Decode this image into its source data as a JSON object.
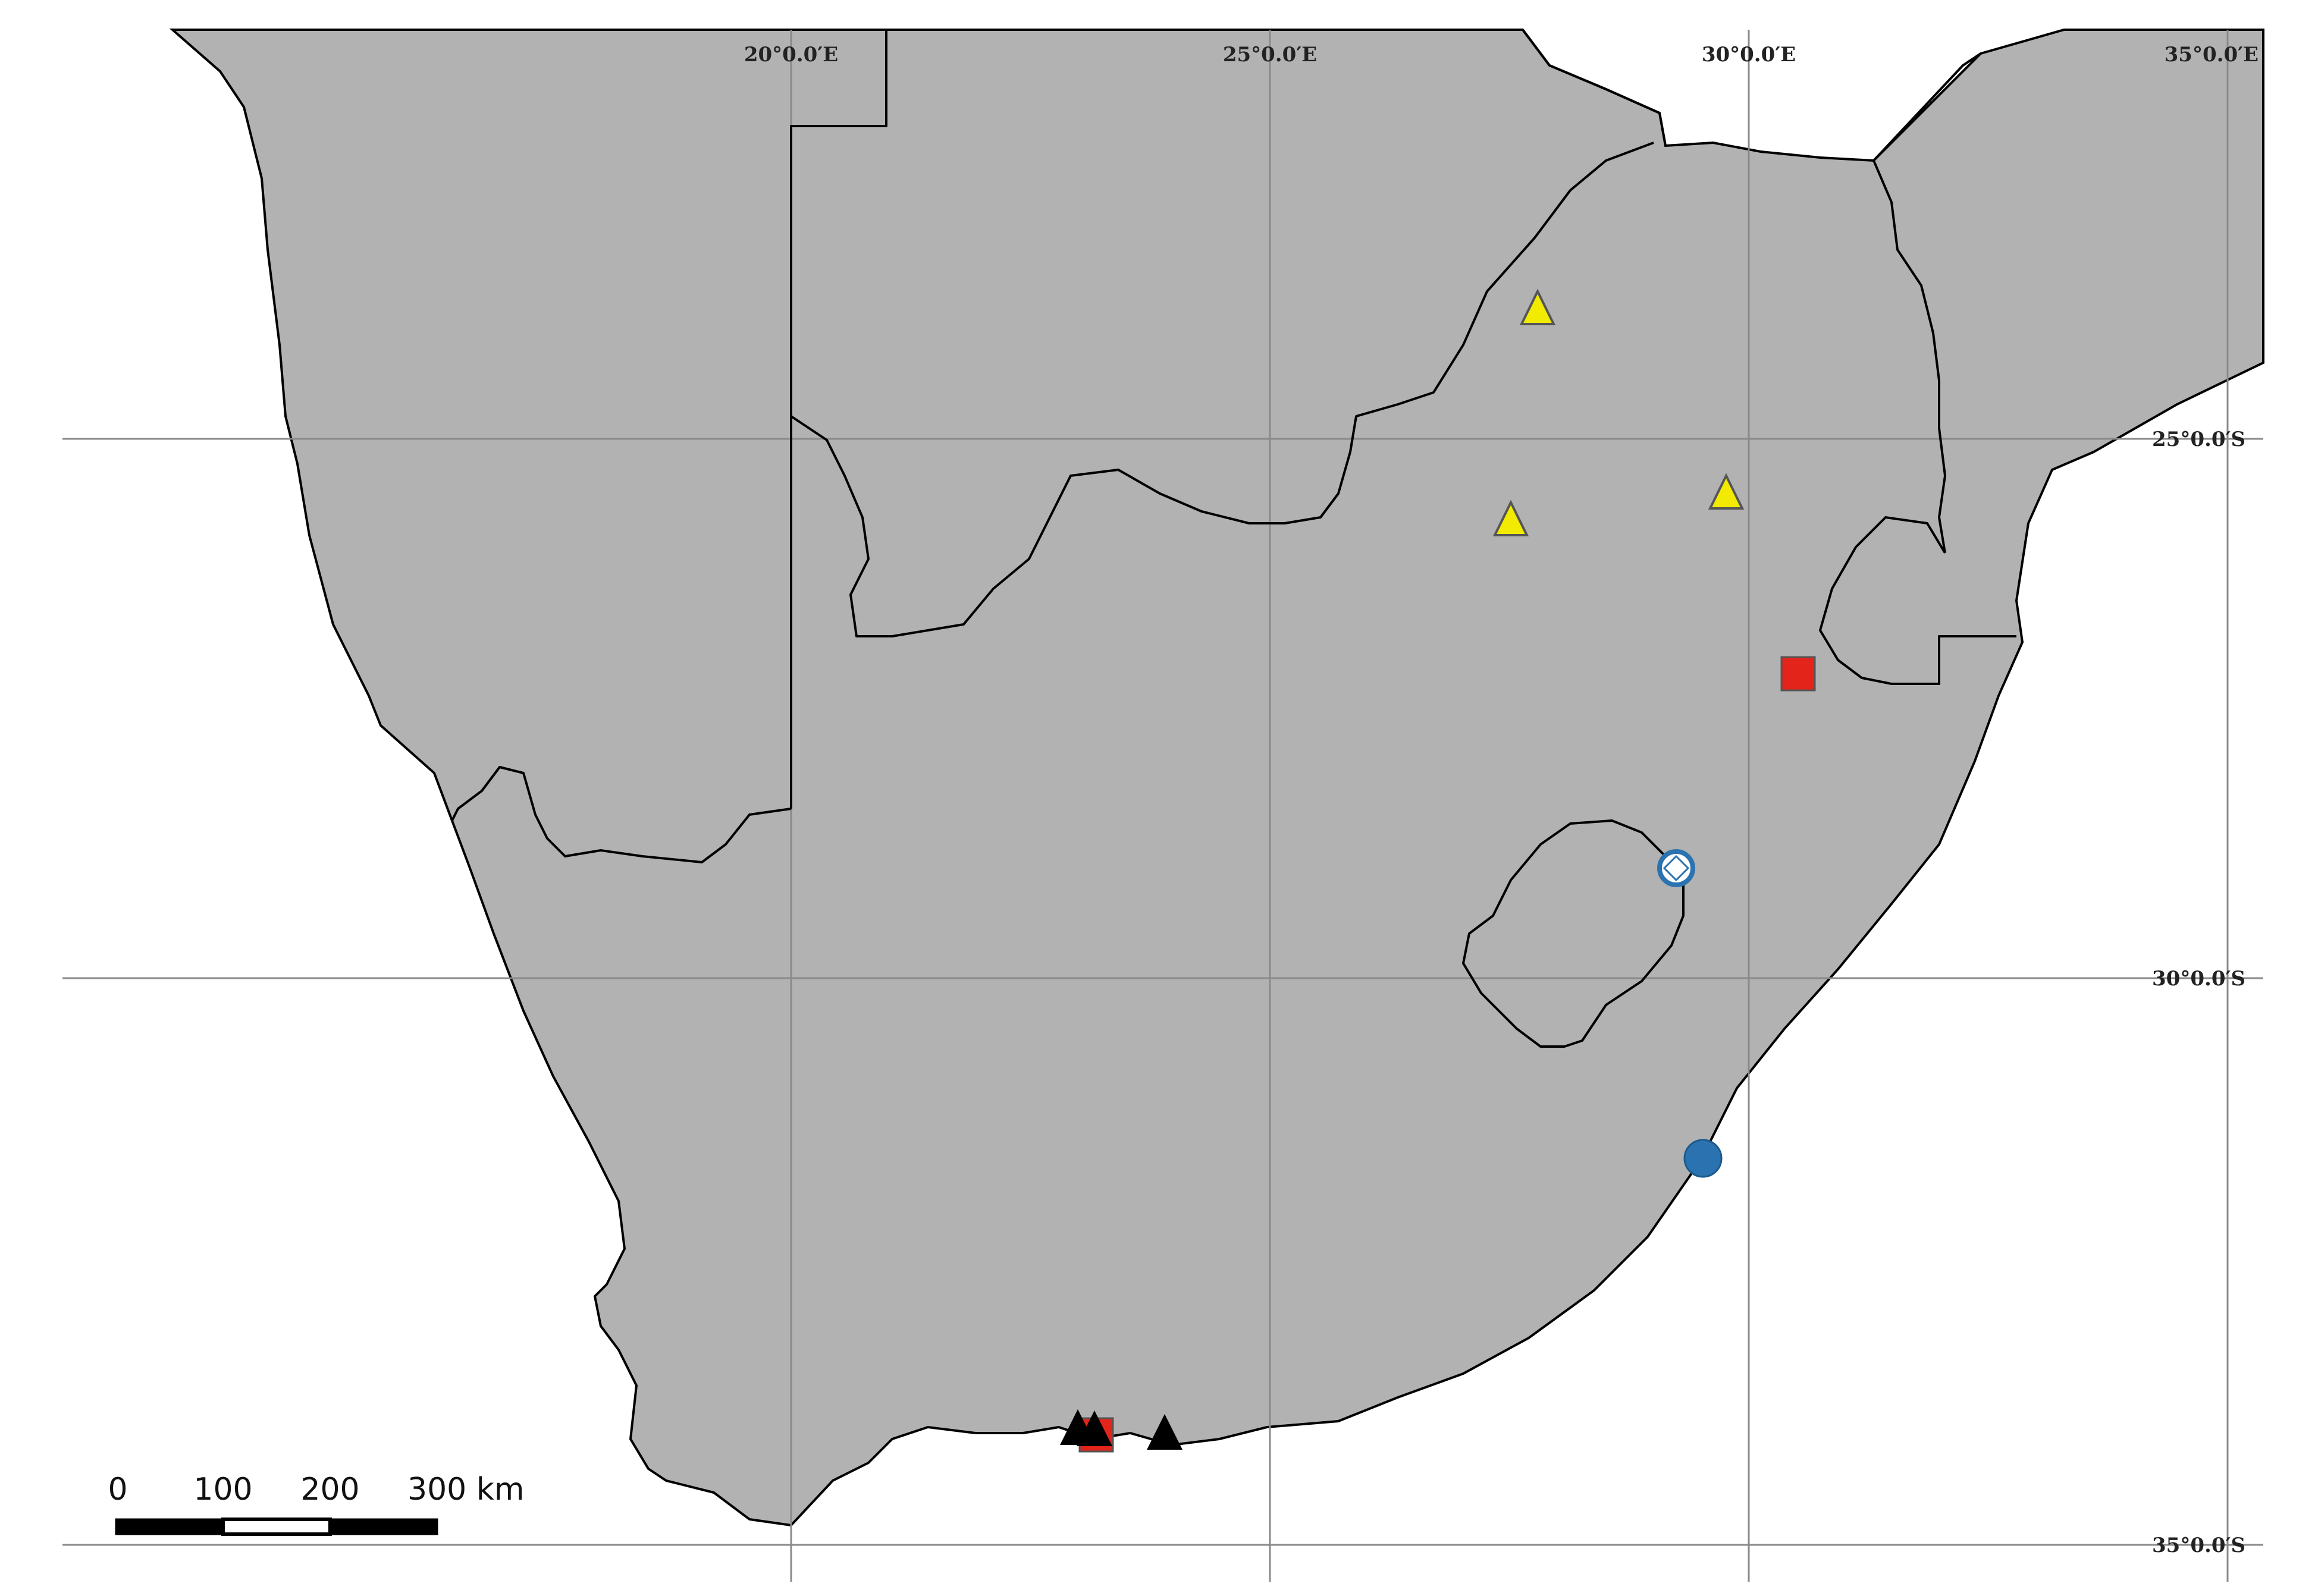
{
  "map": {
    "land_color": "#b2b2b2",
    "border_color": "#000000",
    "grid_color": "#8a8a8a",
    "background_color": "#ffffff"
  },
  "graticule": {
    "longitude_labels": [
      "20°0.0′E",
      "25°0.0′E",
      "30°0.0′E",
      "35°0.0′E"
    ],
    "latitude_labels": [
      "25°0.0′S",
      "30°0.0′S",
      "35°0.0′S"
    ]
  },
  "markers": {
    "yellow_triangle": {
      "shape": "triangle",
      "color": "#f2ea00",
      "stroke": "#555555"
    },
    "red_square": {
      "shape": "square",
      "color": "#e3241b",
      "stroke": "#555555"
    },
    "blue_circle": {
      "shape": "circle",
      "color": "#2a73b0",
      "stroke": "#1d5a8c"
    },
    "blue_ring_diamond": {
      "shape": "ring-with-diamond",
      "color": "#2a73b0",
      "fill": "#ffffff"
    },
    "black_triangle": {
      "shape": "triangle",
      "color": "#000000"
    }
  },
  "scale_bar": {
    "labels": [
      "0",
      "100",
      "200",
      "300 km"
    ]
  }
}
